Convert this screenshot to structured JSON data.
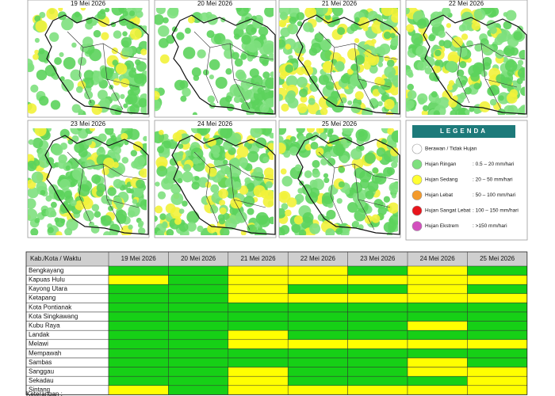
{
  "maps": [
    {
      "date": "19 Mei 2026"
    },
    {
      "date": "20 Mei 2026"
    },
    {
      "date": "21 Mei 2026"
    },
    {
      "date": "22 Mei 2026"
    },
    {
      "date": "23 Mei 2026"
    },
    {
      "date": "24 Mei 2026"
    },
    {
      "date": "25 Mei 2026"
    }
  ],
  "legend": {
    "title": "LEGENDA",
    "items": [
      {
        "label": "Berawan / Tidak Hujan",
        "range": null,
        "color": "#ffffff"
      },
      {
        "label": "Hujan Ringan",
        "range": ": 0.5 – 20 mm/hari",
        "color": "#7ee07e"
      },
      {
        "label": "Hujan Sedang",
        "range": ": 20 – 50 mm/hari",
        "color": "#ffff33"
      },
      {
        "label": "Hujan Lebat",
        "range": ": 50 – 100 mm/hari",
        "color": "#f39a2b"
      },
      {
        "label": "Hujan Sangat Lebat",
        "range": ": 100 – 150 mm/hari",
        "color": "#e8141c"
      },
      {
        "label": "Hujan Ekstrem",
        "range": ": >150 mm/hari",
        "color": "#d24fbe"
      }
    ]
  },
  "table": {
    "header": [
      "Kab./Kota / Waktu",
      "19 Mei 2026",
      "20 Mei 2026",
      "21 Mei 2026",
      "22 Mei 2026",
      "23 Mei 2026",
      "24 Mei 2026",
      "25 Mei 2026"
    ],
    "rows": [
      {
        "name": "Bengkayang",
        "cells": [
          "#16d016",
          "#16d016",
          "#ffff00",
          "#ffff00",
          "#16d016",
          "#ffff00",
          "#16d016"
        ]
      },
      {
        "name": "Kapuas Hulu",
        "cells": [
          "#ffff00",
          "#16d016",
          "#ffff00",
          "#ffff00",
          "#ffff00",
          "#ffff00",
          "#ffff00"
        ]
      },
      {
        "name": "Kayong Utara",
        "cells": [
          "#16d016",
          "#16d016",
          "#ffff00",
          "#16d016",
          "#16d016",
          "#ffff00",
          "#16d016"
        ]
      },
      {
        "name": "Ketapang",
        "cells": [
          "#16d016",
          "#16d016",
          "#ffff00",
          "#ffff00",
          "#ffff00",
          "#ffff00",
          "#ffff00"
        ]
      },
      {
        "name": "Kota Pontianak",
        "cells": [
          "#16d016",
          "#16d016",
          "#16d016",
          "#16d016",
          "#16d016",
          "#16d016",
          "#16d016"
        ]
      },
      {
        "name": "Kota Singkawang",
        "cells": [
          "#16d016",
          "#16d016",
          "#16d016",
          "#16d016",
          "#16d016",
          "#16d016",
          "#16d016"
        ]
      },
      {
        "name": "Kubu Raya",
        "cells": [
          "#16d016",
          "#16d016",
          "#16d016",
          "#16d016",
          "#16d016",
          "#ffff00",
          "#16d016"
        ]
      },
      {
        "name": "Landak",
        "cells": [
          "#16d016",
          "#16d016",
          "#ffff00",
          "#16d016",
          "#16d016",
          "#16d016",
          "#16d016"
        ]
      },
      {
        "name": "Melawi",
        "cells": [
          "#16d016",
          "#16d016",
          "#ffff00",
          "#ffff00",
          "#ffff00",
          "#ffff00",
          "#ffff00"
        ]
      },
      {
        "name": "Mempawah",
        "cells": [
          "#16d016",
          "#16d016",
          "#16d016",
          "#16d016",
          "#16d016",
          "#16d016",
          "#16d016"
        ]
      },
      {
        "name": "Sambas",
        "cells": [
          "#16d016",
          "#16d016",
          "#16d016",
          "#16d016",
          "#16d016",
          "#ffff00",
          "#16d016"
        ]
      },
      {
        "name": "Sanggau",
        "cells": [
          "#16d016",
          "#16d016",
          "#ffff00",
          "#16d016",
          "#16d016",
          "#ffff00",
          "#ffff00"
        ]
      },
      {
        "name": "Sekadau",
        "cells": [
          "#16d016",
          "#16d016",
          "#ffff00",
          "#16d016",
          "#16d016",
          "#16d016",
          "#ffff00"
        ]
      },
      {
        "name": "Sintang",
        "cells": [
          "#ffff00",
          "#16d016",
          "#ffff00",
          "#ffff00",
          "#ffff00",
          "#ffff00",
          "#ffff00"
        ]
      }
    ]
  },
  "footer": "Keterangan :"
}
